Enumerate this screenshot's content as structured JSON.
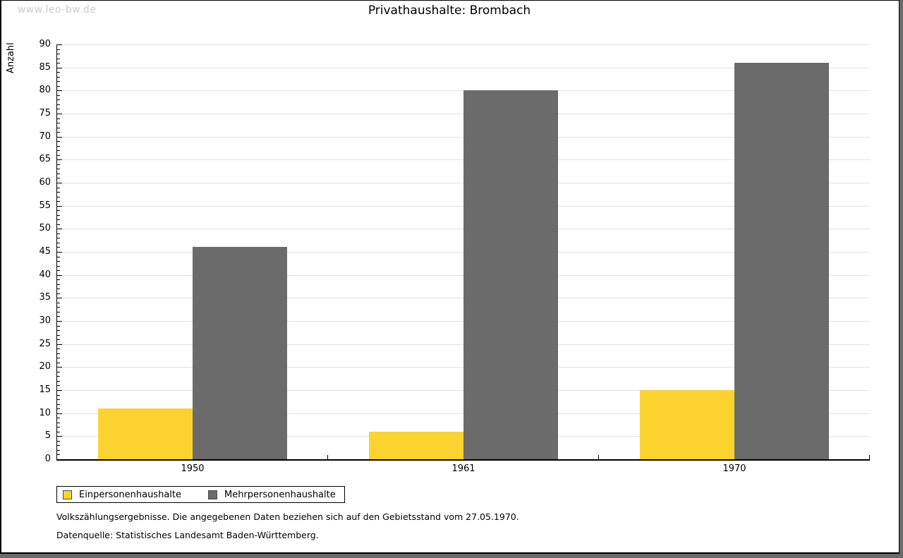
{
  "watermark": "www.leo-bw.de",
  "chart_data": {
    "type": "bar",
    "title": "Privathaushalte: Brombach",
    "ylabel": "Anzahl",
    "xlabel": "",
    "categories": [
      "1950",
      "1961",
      "1970"
    ],
    "series": [
      {
        "name": "Einpersonenhaushalte",
        "color": "#FCD32E",
        "values": [
          11,
          6,
          15
        ]
      },
      {
        "name": "Mehrpersonenhaushalte",
        "color": "#6B6B6B",
        "values": [
          46,
          80,
          86
        ]
      }
    ],
    "ylim": [
      0,
      90
    ],
    "y_major_tick_step": 5,
    "y_minor_tick_step": 1,
    "grid": "horizontal-major",
    "gridline_color": "#e2e2e2",
    "legend_position": "bottom-left"
  },
  "footnotes": [
    "Volkszählungsergebnisse. Die angegebenen Daten beziehen sich auf den Gebietsstand vom 27.05.1970.",
    "Datenquelle: Statistisches Landesamt Baden-Württemberg."
  ]
}
